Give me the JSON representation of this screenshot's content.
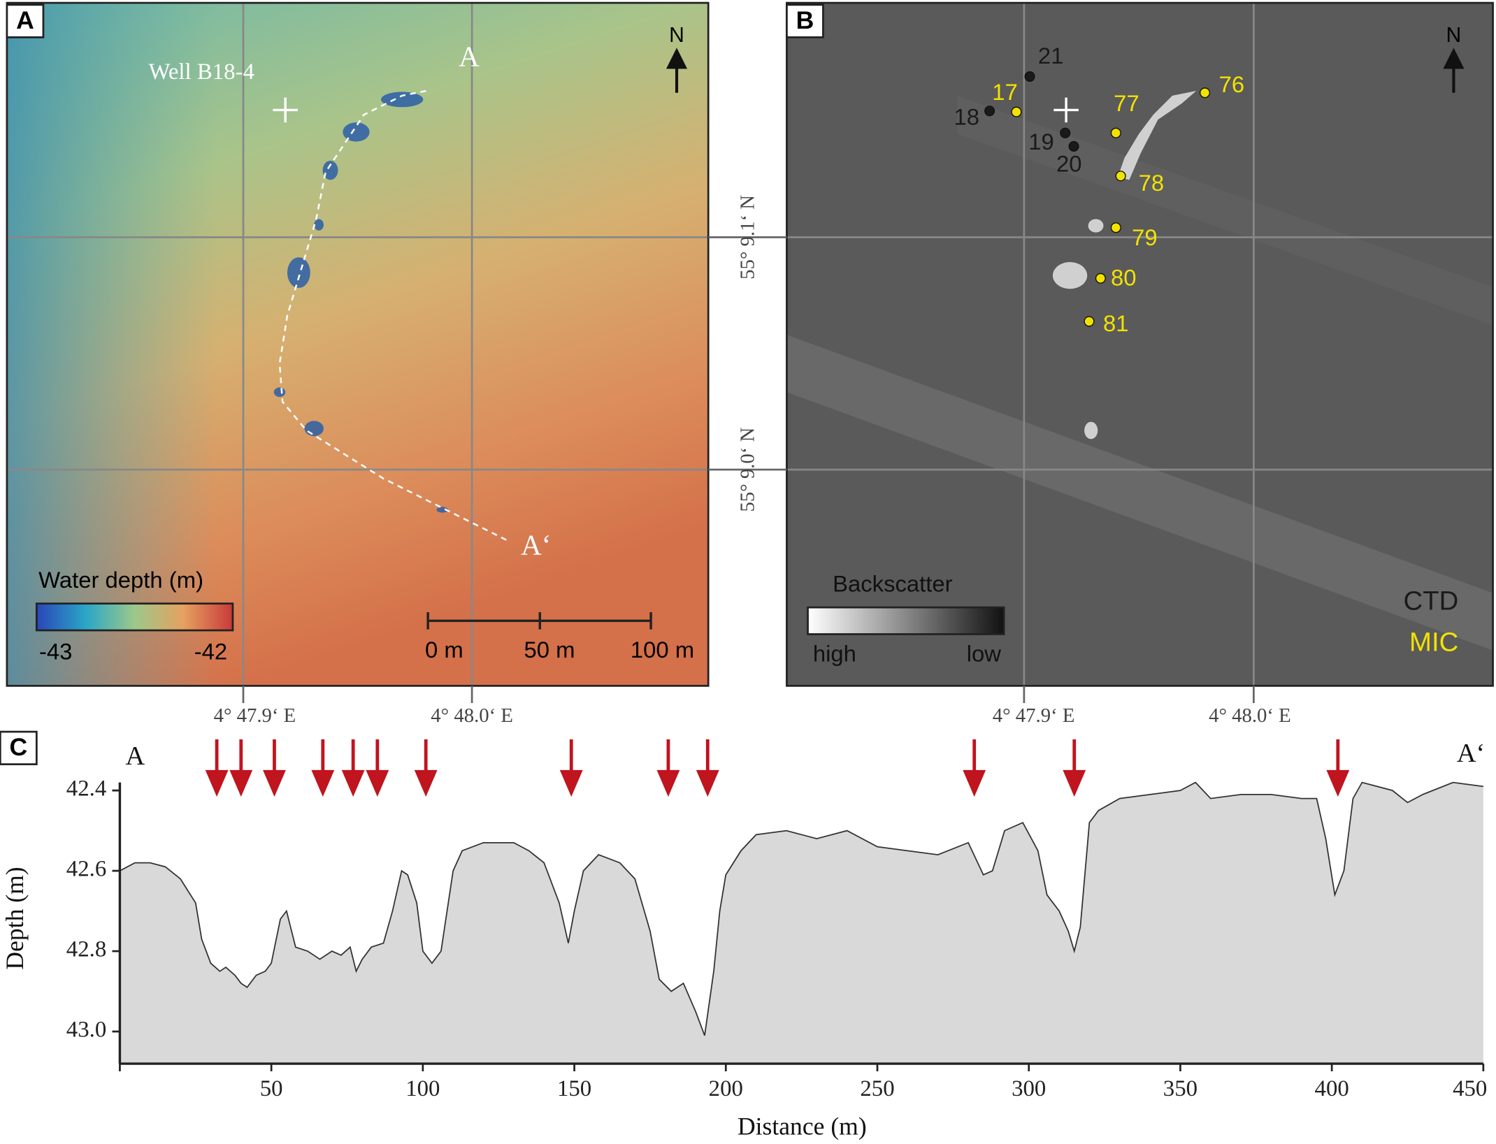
{
  "maps": {
    "panel_a": {
      "letter": "A",
      "well": "Well B18-4",
      "start": "A",
      "end": "A‘",
      "north": "N",
      "colorbar_title": "Water depth (m)",
      "colorbar_min": "-43",
      "colorbar_max": "-42",
      "scale_labels": [
        "0 m",
        "50 m",
        "100 m"
      ]
    },
    "panel_b": {
      "letter": "B",
      "north": "N",
      "colorbar_title": "Backscatter",
      "colorbar_min": "high",
      "colorbar_max": "low",
      "legend": [
        {
          "label": "CTD",
          "color": "#1a1a1a"
        },
        {
          "label": "MIC",
          "color": "#f2e200"
        }
      ],
      "stations": [
        {
          "label": "21",
          "kind": 0
        },
        {
          "label": "17",
          "kind": 1
        },
        {
          "label": "18",
          "kind": 0
        },
        {
          "label": "19",
          "kind": 0
        },
        {
          "label": "20",
          "kind": 0
        },
        {
          "label": "77",
          "kind": 1
        },
        {
          "label": "76",
          "kind": 1
        },
        {
          "label": "78",
          "kind": 1
        },
        {
          "label": "79",
          "kind": 1
        },
        {
          "label": "80",
          "kind": 1
        },
        {
          "label": "81",
          "kind": 1
        }
      ]
    },
    "lat_labels": [
      "55° 9.1‘ N",
      "55° 9.0‘ N"
    ],
    "lon_labels": [
      "4° 47.9‘ E",
      "4° 48.0‘ E"
    ]
  },
  "chart_data": {
    "type": "area",
    "letter": "C",
    "start": "A",
    "end": "A‘",
    "x_label": "Distance (m)",
    "y_label": "Depth (m)",
    "color": "#d9d9d9",
    "line_color": "#333333",
    "arrow_color": "#c0141e",
    "x": [
      0,
      5,
      10,
      15,
      20,
      25,
      27,
      30,
      33,
      35,
      38,
      40,
      42,
      45,
      48,
      50,
      53,
      55,
      58,
      62,
      66,
      70,
      73,
      76,
      78,
      80,
      83,
      87,
      90,
      93,
      95,
      98,
      100,
      103,
      106,
      110,
      113,
      120,
      130,
      135,
      140,
      145,
      148,
      150,
      153,
      158,
      165,
      170,
      175,
      178,
      182,
      186,
      190,
      193,
      196,
      198,
      200,
      205,
      210,
      220,
      230,
      240,
      250,
      260,
      270,
      280,
      285,
      288,
      292,
      298,
      303,
      306,
      310,
      313,
      315,
      317,
      320,
      323,
      330,
      340,
      350,
      355,
      360,
      370,
      380,
      390,
      395,
      398,
      401,
      404,
      407,
      410,
      415,
      420,
      425,
      430,
      440,
      450
    ],
    "values": [
      42.6,
      42.58,
      42.58,
      42.59,
      42.62,
      42.68,
      42.77,
      42.83,
      42.85,
      42.84,
      42.86,
      42.88,
      42.89,
      42.86,
      42.85,
      42.83,
      42.72,
      42.7,
      42.79,
      42.8,
      42.82,
      42.8,
      42.81,
      42.79,
      42.85,
      42.82,
      42.79,
      42.78,
      42.7,
      42.6,
      42.61,
      42.68,
      42.8,
      42.83,
      42.8,
      42.6,
      42.55,
      42.53,
      42.53,
      42.55,
      42.58,
      42.68,
      42.78,
      42.7,
      42.6,
      42.56,
      42.58,
      42.62,
      42.75,
      42.87,
      42.9,
      42.88,
      42.95,
      43.01,
      42.85,
      42.7,
      42.61,
      42.55,
      42.51,
      42.5,
      42.52,
      42.5,
      42.54,
      42.55,
      42.56,
      42.53,
      42.61,
      42.6,
      42.5,
      42.48,
      42.55,
      42.66,
      42.7,
      42.75,
      42.8,
      42.74,
      42.48,
      42.45,
      42.42,
      42.41,
      42.4,
      42.38,
      42.42,
      42.41,
      42.41,
      42.42,
      42.42,
      42.52,
      42.66,
      42.6,
      42.42,
      42.38,
      42.39,
      42.4,
      42.43,
      42.41,
      42.38,
      42.39
    ],
    "arrows_x": [
      32,
      40,
      51,
      67,
      77,
      85,
      101,
      149,
      181,
      194,
      282,
      315,
      402
    ],
    "xlim": [
      0,
      450
    ],
    "xticks": [
      50,
      100,
      150,
      200,
      250,
      300,
      350,
      400,
      450
    ],
    "ylim": [
      43.08,
      42.38
    ],
    "yticks": [
      42.4,
      42.6,
      42.8,
      {
        "value": 43,
        "label": "43.0"
      }
    ]
  }
}
